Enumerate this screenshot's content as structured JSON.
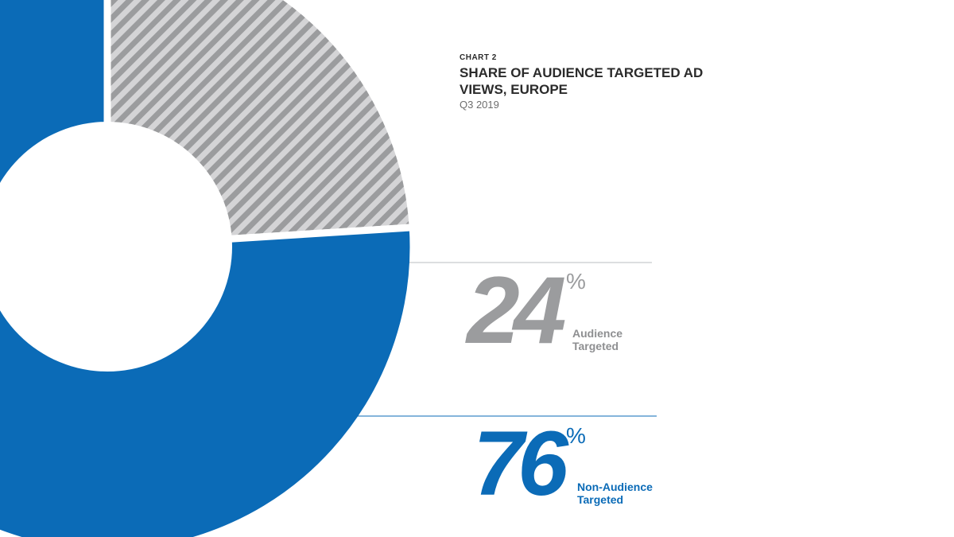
{
  "header": {
    "eyebrow": "CHART 2",
    "title": "SHARE OF AUDIENCE TARGETED AD VIEWS, EUROPE",
    "subtitle": "Q3 2019"
  },
  "colors": {
    "audience_targeted": "#9b9c9e",
    "non_audience_targeted": "#0b6bb7"
  },
  "callouts": [
    {
      "value": "24",
      "percent_sign": "%",
      "label_line1": "Audience",
      "label_line2": "Targeted"
    },
    {
      "value": "76",
      "percent_sign": "%",
      "label_line1": "Non-Audience",
      "label_line2": "Targeted"
    }
  ],
  "chart_data": {
    "type": "pie",
    "variant": "donut",
    "title": "SHARE OF AUDIENCE TARGETED AD VIEWS, EUROPE",
    "subtitle": "Q3 2019",
    "categories": [
      "Audience Targeted",
      "Non-Audience Targeted"
    ],
    "values": [
      24,
      76
    ],
    "unit": "%",
    "legend": "none"
  }
}
